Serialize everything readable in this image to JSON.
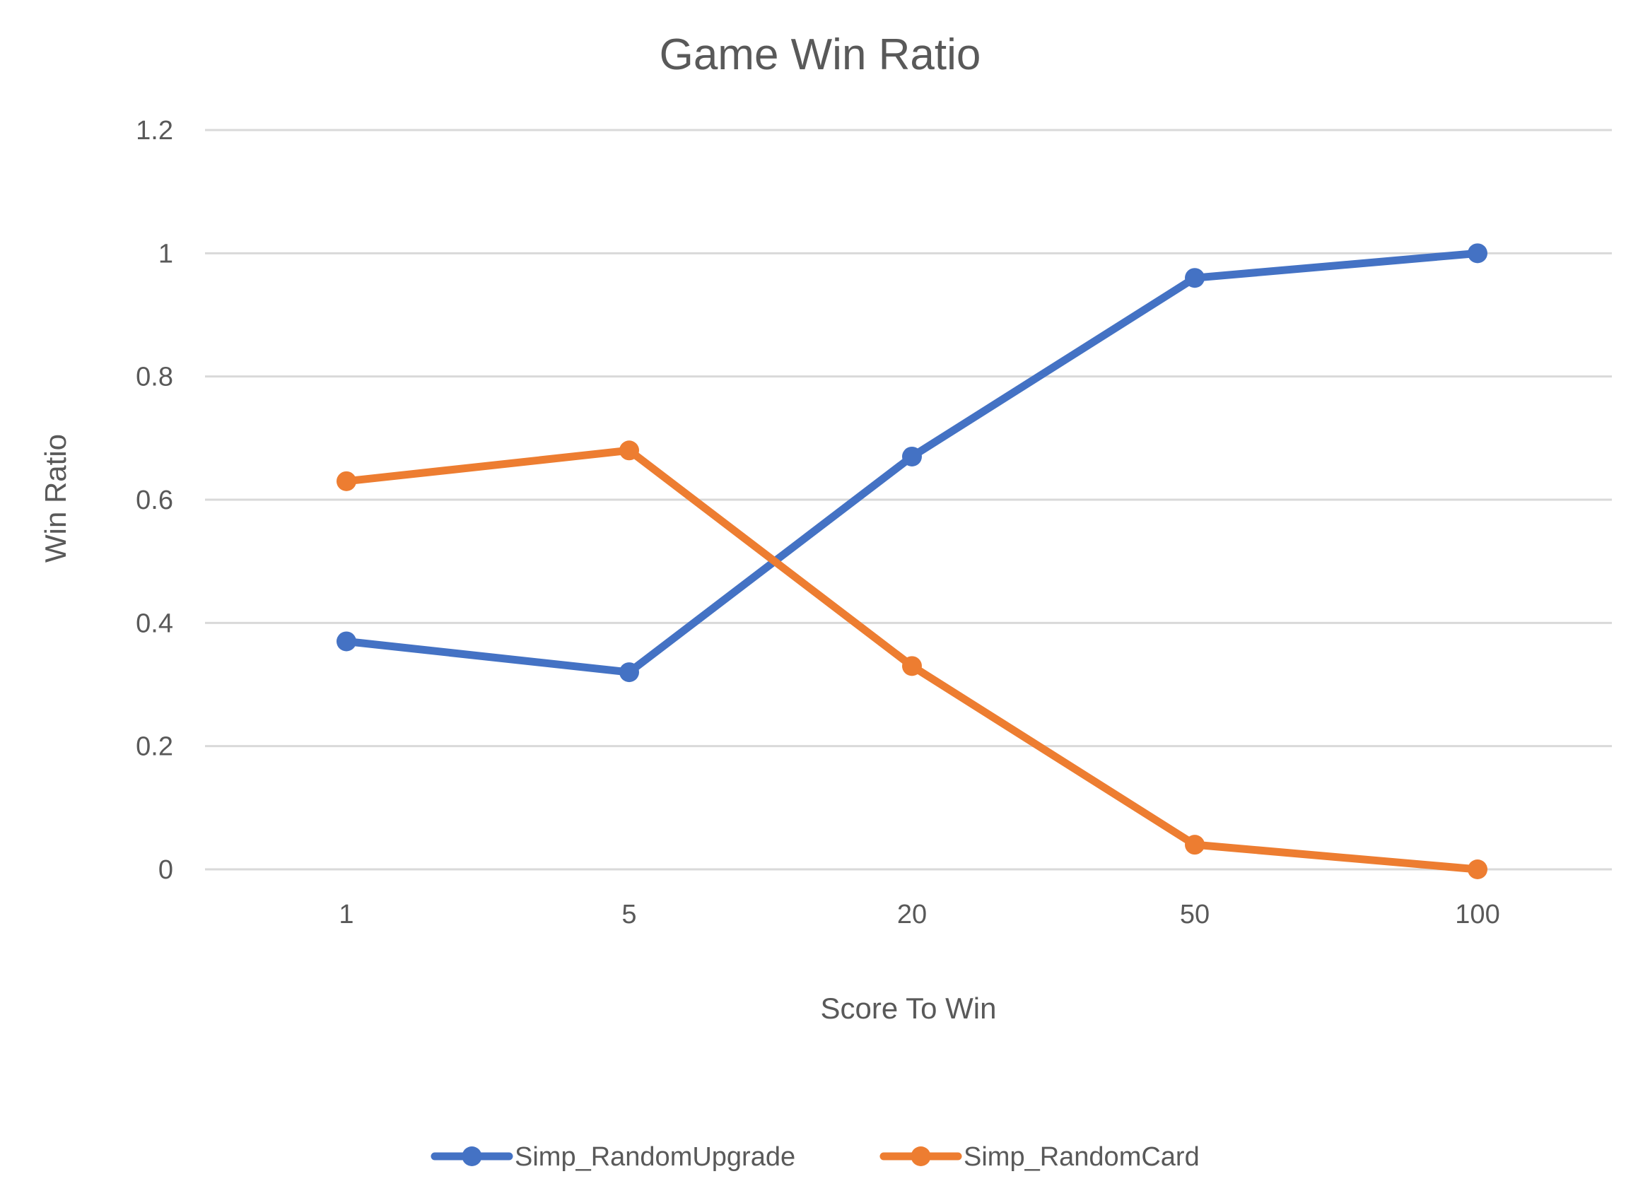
{
  "chart_data": {
    "type": "line",
    "title": "Game Win Ratio",
    "xlabel": "Score To Win",
    "ylabel": "Win Ratio",
    "categories": [
      "1",
      "5",
      "20",
      "50",
      "100"
    ],
    "ylim": [
      0,
      1.2
    ],
    "yticks": [
      "0",
      "0.2",
      "0.4",
      "0.6",
      "0.8",
      "1",
      "1.2"
    ],
    "ytick_values": [
      0,
      0.2,
      0.4,
      0.6,
      0.8,
      1.0,
      1.2
    ],
    "grid": true,
    "legend_position": "bottom",
    "series": [
      {
        "name": "Simp_RandomUpgrade",
        "color": "#4472c4",
        "values": [
          0.37,
          0.32,
          0.67,
          0.96,
          1.0
        ]
      },
      {
        "name": "Simp_RandomCard",
        "color": "#ed7d31",
        "values": [
          0.63,
          0.68,
          0.33,
          0.04,
          0.0
        ]
      }
    ]
  }
}
